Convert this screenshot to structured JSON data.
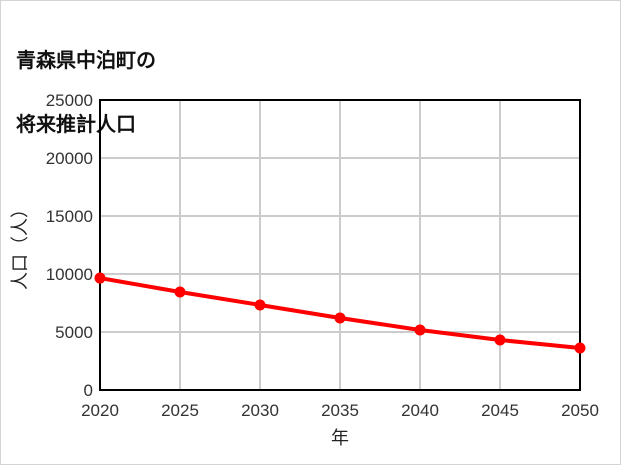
{
  "title_line1": "青森県中泊町の",
  "title_line2": "将来推計人口",
  "chart_data": {
    "type": "line",
    "title": "青森県中泊町の将来推計人口",
    "xlabel": "年",
    "ylabel": "人口（人）",
    "categories": [
      2020,
      2025,
      2030,
      2035,
      2040,
      2045,
      2050
    ],
    "series": [
      {
        "name": "人口",
        "color": "#ff0000",
        "values": [
          9650,
          8450,
          7330,
          6210,
          5170,
          4310,
          3620
        ]
      }
    ],
    "ylim": [
      0,
      25000
    ],
    "yticks": [
      0,
      5000,
      10000,
      15000,
      20000,
      25000
    ],
    "xlim": [
      2020,
      2050
    ],
    "xticks": [
      2020,
      2025,
      2030,
      2035,
      2040,
      2045,
      2050
    ],
    "grid": true,
    "legend": "none"
  },
  "colors": {
    "line": "#ff0000",
    "grid": "#cccccc",
    "axis": "#000000"
  }
}
